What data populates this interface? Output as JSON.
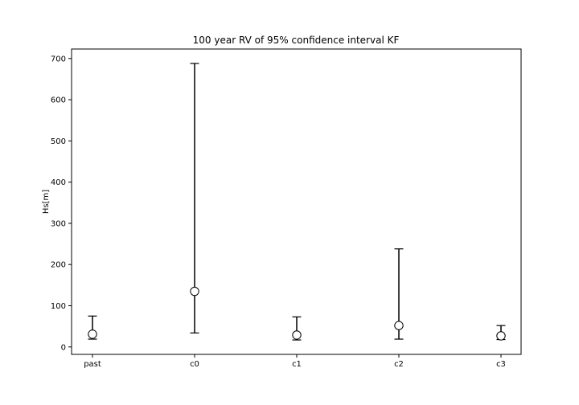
{
  "chart_data": {
    "type": "errorbar",
    "title": "100 year RV of 95% confidence interval KF",
    "xlabel": "",
    "ylabel": "Hs[m]",
    "categories": [
      "past",
      "c0",
      "c1",
      "c2",
      "c3"
    ],
    "values": [
      31,
      135,
      29,
      52,
      27
    ],
    "lower": [
      19,
      34,
      17,
      19,
      18
    ],
    "upper": [
      75,
      688,
      73,
      238,
      52
    ],
    "ylim": [
      -18,
      723
    ],
    "yticks": [
      0,
      100,
      200,
      300,
      400,
      500,
      600,
      700
    ],
    "grid": false,
    "marker": "open-circle",
    "line_color": "#000000",
    "marker_fill": "#ffffff"
  }
}
